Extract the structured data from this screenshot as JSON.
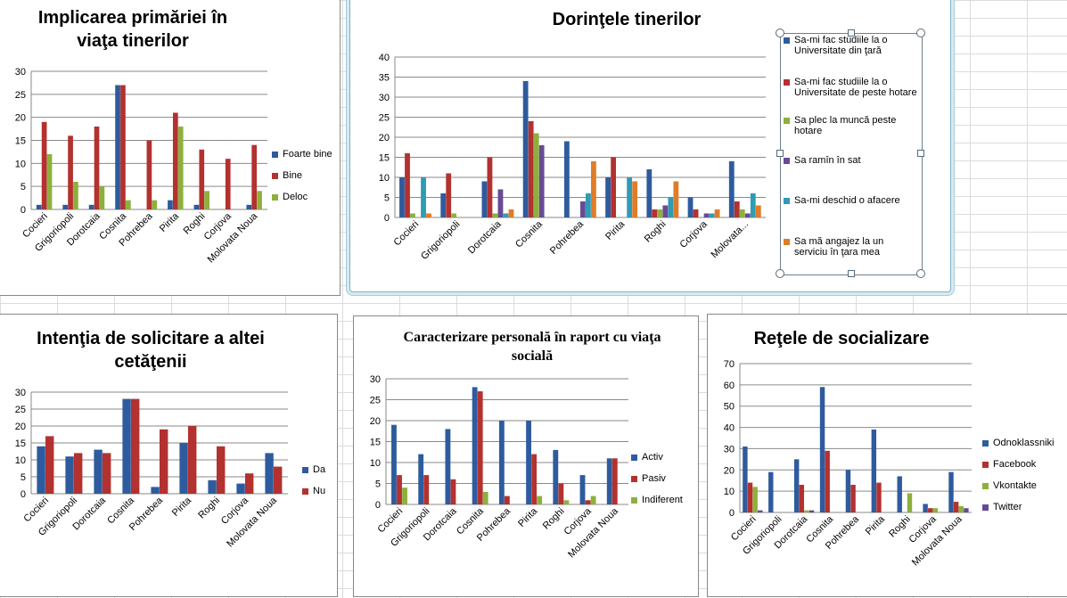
{
  "chart_data": [
    {
      "id": "c1",
      "type": "bar",
      "title": "Implicarea primăriei în viaţa tinerilor",
      "categories": [
        "Cocieri",
        "Grigoriopoli",
        "Dorotcaia",
        "Cosnita",
        "Pohrebea",
        "Pirita",
        "Roghi",
        "Corjova",
        "Molovata Noua"
      ],
      "ylim": [
        0,
        30
      ],
      "yticks": [
        0,
        5,
        10,
        15,
        20,
        25,
        30
      ],
      "grid": true,
      "legend_position": "right",
      "series": [
        {
          "name": "Foarte bine",
          "color": "#2e5b9e",
          "values": [
            1,
            1,
            1,
            27,
            0,
            2,
            1,
            0,
            1
          ]
        },
        {
          "name": "Bine",
          "color": "#b3312f",
          "values": [
            19,
            16,
            18,
            27,
            15,
            21,
            13,
            11,
            14
          ]
        },
        {
          "name": "Deloc",
          "color": "#8db03d",
          "values": [
            12,
            6,
            5,
            2,
            2,
            18,
            4,
            0,
            4
          ]
        }
      ]
    },
    {
      "id": "c2",
      "type": "bar",
      "title": "Dorinţele tinerilor",
      "categories": [
        "Cocieri",
        "Grigoriopoli",
        "Dorotcaia",
        "Cosnita",
        "Pohrebea",
        "Pirita",
        "Roghi",
        "Corjova",
        "Molovata..."
      ],
      "ylim": [
        0,
        40
      ],
      "yticks": [
        0,
        5,
        10,
        15,
        20,
        25,
        30,
        35,
        40
      ],
      "grid": true,
      "legend_position": "right",
      "series": [
        {
          "name": "Sa-mi fac studiile la o Universitate din ţară",
          "color": "#2e5b9e",
          "values": [
            10,
            6,
            9,
            34,
            19,
            10,
            12,
            5,
            14
          ]
        },
        {
          "name": "Sa-mi fac studiile la o Universitate de peste hotare",
          "color": "#b3312f",
          "values": [
            16,
            11,
            15,
            24,
            0,
            15,
            2,
            2,
            4
          ]
        },
        {
          "name": "Sa plec la muncă peste hotare",
          "color": "#8db03d",
          "values": [
            1,
            1,
            1,
            21,
            0,
            0,
            2,
            0,
            2
          ]
        },
        {
          "name": "Sa ramîn în sat",
          "color": "#674a95",
          "values": [
            0,
            0,
            7,
            18,
            4,
            0,
            3,
            1,
            1
          ]
        },
        {
          "name": "Sa-mi deschid o afacere",
          "color": "#2f9bb5",
          "values": [
            10,
            0,
            1,
            0,
            6,
            10,
            5,
            1,
            6
          ]
        },
        {
          "name": "Sa mă angajez la un serviciu în ţara mea",
          "color": "#e07c28",
          "values": [
            1,
            0,
            2,
            0,
            14,
            9,
            9,
            2,
            3
          ]
        }
      ]
    },
    {
      "id": "c3",
      "type": "bar",
      "title": "Intenţia de solicitare a altei cetăţenii",
      "categories": [
        "Cocieri",
        "Grigoriopoli",
        "Dorotcaia",
        "Cosnita",
        "Pohrebea",
        "Pirita",
        "Roghi",
        "Corjova",
        "Molovata Noua"
      ],
      "ylim": [
        0,
        30
      ],
      "yticks": [
        0,
        5,
        10,
        15,
        20,
        25,
        30
      ],
      "grid": true,
      "legend_position": "right",
      "series": [
        {
          "name": "Da",
          "color": "#2e5b9e",
          "values": [
            14,
            11,
            13,
            28,
            2,
            15,
            4,
            3,
            12
          ]
        },
        {
          "name": "Nu",
          "color": "#b3312f",
          "values": [
            17,
            12,
            12,
            28,
            19,
            20,
            14,
            6,
            8
          ]
        }
      ]
    },
    {
      "id": "c4",
      "type": "bar",
      "title": "Caracterizare personală în raport cu viaţa socială",
      "categories": [
        "Cocieri",
        "Grigoriopoli",
        "Dorotcaia",
        "Cosnita",
        "Pohrebea",
        "Pirita",
        "Roghi",
        "Corjova",
        "Molovata Noua"
      ],
      "ylim": [
        0,
        30
      ],
      "yticks": [
        0,
        5,
        10,
        15,
        20,
        25,
        30
      ],
      "grid": true,
      "legend_position": "right",
      "series": [
        {
          "name": "Activ",
          "color": "#2e5b9e",
          "values": [
            19,
            12,
            18,
            28,
            20,
            20,
            13,
            7,
            11
          ]
        },
        {
          "name": "Pasiv",
          "color": "#b3312f",
          "values": [
            7,
            7,
            6,
            27,
            2,
            12,
            5,
            1,
            11
          ]
        },
        {
          "name": "Indiferent",
          "color": "#8db03d",
          "values": [
            4,
            0,
            0,
            3,
            0,
            2,
            1,
            2,
            0
          ]
        }
      ]
    },
    {
      "id": "c5",
      "type": "bar",
      "title": "Reţele de socializare",
      "categories": [
        "Cocieri",
        "Grigoriopoli",
        "Dorotcaia",
        "Cosnita",
        "Pohrebea",
        "Pirita",
        "Roghi",
        "Corjova",
        "Molovata Noua"
      ],
      "ylim": [
        0,
        70
      ],
      "yticks": [
        0,
        10,
        20,
        30,
        40,
        50,
        60,
        70
      ],
      "grid": true,
      "legend_position": "right",
      "series": [
        {
          "name": "Odnoklassniki",
          "color": "#2e5b9e",
          "values": [
            31,
            19,
            25,
            59,
            20,
            39,
            17,
            4,
            19
          ]
        },
        {
          "name": "Facebook",
          "color": "#b3312f",
          "values": [
            14,
            0,
            13,
            29,
            13,
            14,
            0,
            2,
            5
          ]
        },
        {
          "name": "Vkontakte",
          "color": "#8db03d",
          "values": [
            12,
            0,
            1,
            0,
            0,
            0,
            9,
            2,
            3
          ]
        },
        {
          "name": "Twitter",
          "color": "#674a95",
          "values": [
            1,
            0,
            1,
            0,
            0,
            0,
            0,
            0,
            2
          ]
        }
      ]
    }
  ]
}
